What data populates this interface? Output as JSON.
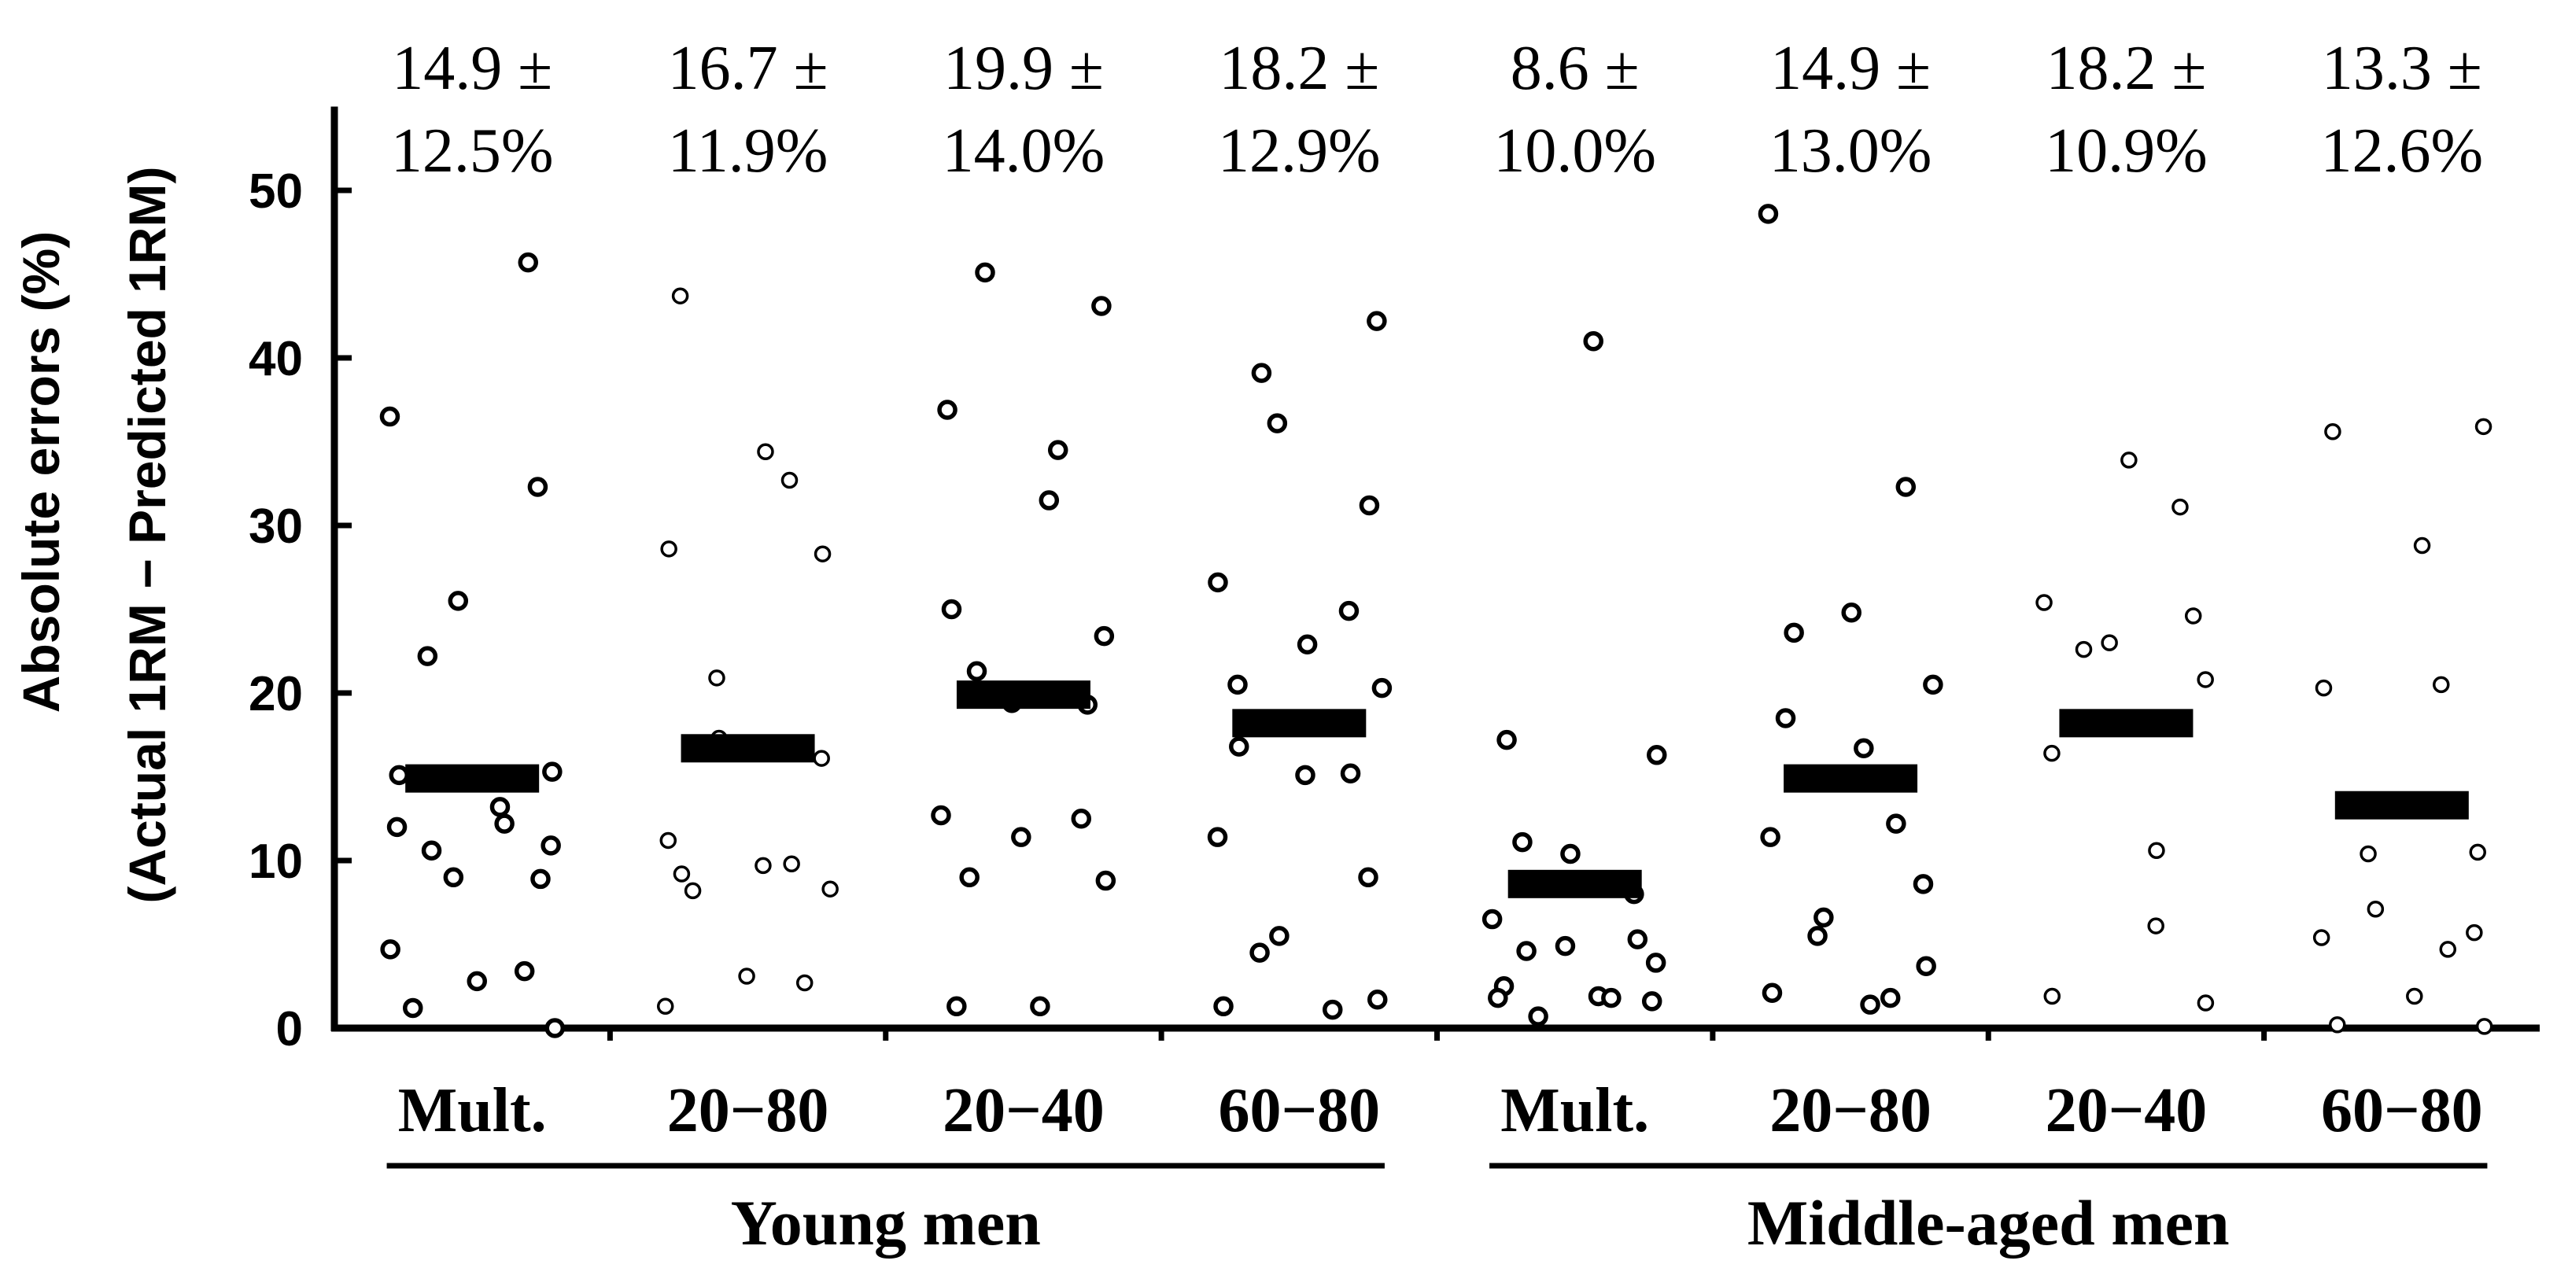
{
  "chart_data": {
    "type": "scatter",
    "y_label_line1": "Absolute errors (%)",
    "y_label_line2": "(Actual 1RM − Predicted 1RM)",
    "ylim": [
      0,
      55
    ],
    "y_ticks": [
      0,
      10,
      20,
      30,
      40,
      50
    ],
    "grid": false,
    "groups": [
      {
        "label": "Young men",
        "columns": [
          0,
          1,
          2,
          3
        ]
      },
      {
        "label": "Middle-aged men",
        "columns": [
          4,
          5,
          6,
          7
        ]
      }
    ],
    "columns": [
      {
        "label": "Mult.",
        "stat_line1": "14.9 ±",
        "stat_line2": "12.5%",
        "mean": 14.9,
        "bold_markers": true,
        "points": [
          45.7,
          36.5,
          32.3,
          25.5,
          22.2,
          15.3,
          15.1,
          13.2,
          12.2,
          12.0,
          10.9,
          10.6,
          9.0,
          8.9,
          4.7,
          3.4,
          2.8,
          1.2,
          0.0
        ]
      },
      {
        "label": "20−80",
        "stat_line1": "16.7 ±",
        "stat_line2": "11.9%",
        "mean": 16.7,
        "bold_markers": false,
        "points": [
          43.7,
          34.4,
          32.7,
          28.6,
          28.3,
          20.9,
          17.3,
          16.1,
          11.2,
          9.8,
          9.7,
          9.2,
          8.3,
          8.2,
          3.1,
          2.7,
          1.3
        ]
      },
      {
        "label": "20−40",
        "stat_line1": "19.9 ±",
        "stat_line2": "14.0%",
        "mean": 19.9,
        "bold_markers": true,
        "points": [
          45.1,
          43.1,
          36.9,
          34.5,
          31.5,
          25.0,
          23.4,
          21.3,
          19.4,
          19.3,
          12.7,
          12.5,
          11.4,
          9.0,
          8.8,
          1.3,
          1.3
        ]
      },
      {
        "label": "60−80",
        "stat_line1": "18.2 ±",
        "stat_line2": "12.9%",
        "mean": 18.2,
        "bold_markers": true,
        "points": [
          42.2,
          39.1,
          36.1,
          31.2,
          26.6,
          24.9,
          22.9,
          20.5,
          20.3,
          16.8,
          15.1,
          15.2,
          11.4,
          9.0,
          5.5,
          4.5,
          1.7,
          1.3,
          1.1
        ]
      },
      {
        "label": "Mult.",
        "stat_line1": "8.6 ±",
        "stat_line2": "10.0%",
        "mean": 8.6,
        "bold_markers": true,
        "points": [
          41.0,
          17.2,
          16.3,
          11.1,
          10.4,
          8.0,
          6.5,
          5.3,
          4.9,
          4.6,
          3.9,
          2.5,
          1.9,
          1.8,
          1.8,
          1.6,
          0.7
        ]
      },
      {
        "label": "20−80",
        "stat_line1": "14.9 ±",
        "stat_line2": "13.0%",
        "mean": 14.9,
        "bold_markers": true,
        "points": [
          48.6,
          32.3,
          24.8,
          23.6,
          20.5,
          18.5,
          16.7,
          12.2,
          11.4,
          8.6,
          6.6,
          5.5,
          3.7,
          2.1,
          1.8,
          1.4
        ]
      },
      {
        "label": "20−40",
        "stat_line1": "18.2 ±",
        "stat_line2": "10.9%",
        "mean": 18.2,
        "bold_markers": false,
        "points": [
          33.9,
          31.1,
          25.4,
          24.6,
          23.0,
          22.6,
          20.8,
          16.4,
          10.6,
          6.1,
          1.9,
          1.5
        ]
      },
      {
        "label": "60−80",
        "stat_line1": "13.3 ±",
        "stat_line2": "12.6%",
        "mean": 13.3,
        "bold_markers": false,
        "points": [
          35.9,
          35.6,
          28.8,
          20.5,
          20.3,
          10.5,
          10.4,
          7.1,
          5.7,
          5.4,
          4.7,
          1.9,
          0.2,
          0.1
        ]
      }
    ]
  }
}
